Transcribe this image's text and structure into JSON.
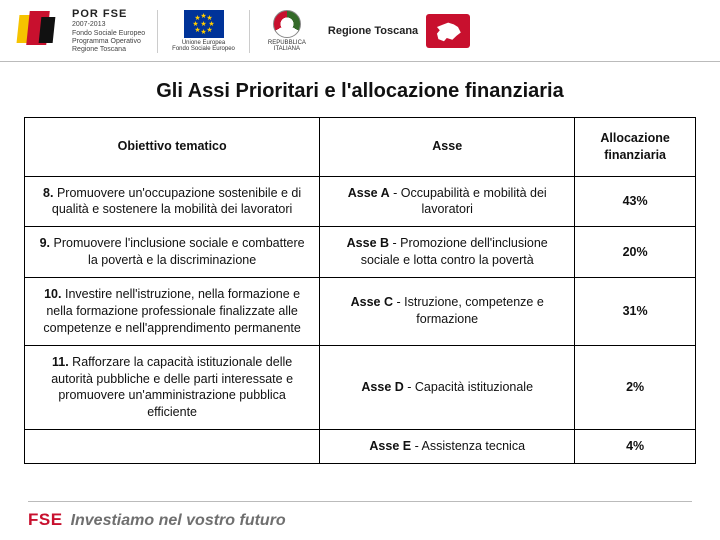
{
  "header": {
    "porfse_title": "POR FSE",
    "porfse_sub1": "2007-2013",
    "porfse_sub2": "Fondo Sociale Europeo",
    "porfse_sub3": "Programma Operativo",
    "porfse_sub4": "Regione Toscana",
    "eu_caption1": "Unione Europea",
    "eu_caption2": "Fondo Sociale Europeo",
    "italy_caption1": "REPUBBLICA",
    "italy_caption2": "ITALIANA",
    "toscana_label": "Regione Toscana"
  },
  "title": "Gli Assi Prioritari e l'allocazione finanziaria",
  "table": {
    "columns": [
      "Obiettivo tematico",
      "Asse",
      "Allocazione finanziaria"
    ],
    "col_widths_pct": [
      44,
      38,
      18
    ],
    "rows": [
      {
        "obj_lead": "8.",
        "obj_text": " Promuovere un'occupazione sostenibile e di qualità e sostenere la mobilità dei lavoratori",
        "asse_lead": "Asse A",
        "asse_text": " - Occupabilità e mobilità dei lavoratori",
        "pct": "43%"
      },
      {
        "obj_lead": "9.",
        "obj_text": " Promuovere l'inclusione sociale e combattere la povertà e la discriminazione",
        "asse_lead": "Asse B",
        "asse_text": " - Promozione dell'inclusione sociale e lotta contro la povertà",
        "pct": "20%"
      },
      {
        "obj_lead": "10.",
        "obj_text": " Investire nell'istruzione, nella formazione e nella formazione professionale finalizzate alle competenze e nell'apprendimento permanente",
        "asse_lead": "Asse C",
        "asse_text": " - Istruzione, competenze e formazione",
        "pct": "31%"
      },
      {
        "obj_lead": "11.",
        "obj_text": " Rafforzare la capacità istituzionale delle autorità pubbliche e delle parti interessate e promuovere un'amministrazione pubblica efficiente",
        "asse_lead": "Asse D",
        "asse_text": "  - Capacità istituzionale",
        "pct": "2%"
      },
      {
        "obj_lead": "",
        "obj_text": "",
        "asse_lead": "Asse E",
        "asse_text": " - Assistenza tecnica",
        "pct": "4%"
      }
    ]
  },
  "footer": {
    "fse": "FSE",
    "slogan": "Investiamo nel vostro futuro"
  },
  "colors": {
    "accent_red": "#c8102e",
    "border": "#000000",
    "rule": "#bbbbbb",
    "text": "#111111",
    "slogan_gray": "#6f6f6f"
  }
}
